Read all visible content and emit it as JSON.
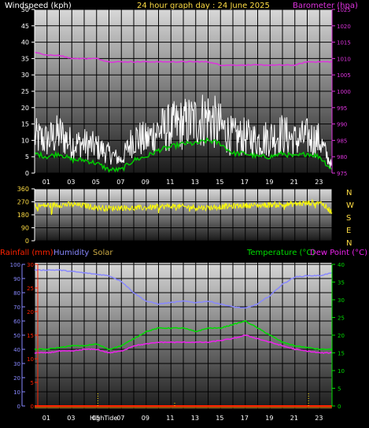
{
  "header": {
    "left_label": "Windspeed (kph)",
    "title": "24 hour graph day : 24 June 2025",
    "right_label": "Barometer (hpa)"
  },
  "colors": {
    "windspeed": "#ffffff",
    "gust_avg": "#00cc00",
    "barometer": "#dd33dd",
    "direction": "#ffff00",
    "rainfall": "#ff2200",
    "humidity": "#8888ff",
    "solar": "#ffcc33",
    "temperature": "#00dd00",
    "dewpoint": "#ee22ee",
    "axis_yellow": "#ffdd44",
    "grid": "#000000"
  },
  "x_ticks": [
    "01",
    "03",
    "05",
    "07",
    "09",
    "11",
    "13",
    "15",
    "17",
    "19",
    "21",
    "23"
  ],
  "panel1": {
    "left_ticks": [
      "0",
      "5",
      "10",
      "15",
      "20",
      "25",
      "30",
      "35",
      "40",
      "45",
      "50"
    ],
    "right_ticks": [
      "975",
      "980",
      "985",
      "990",
      "995",
      "1000",
      "1005",
      "1010",
      "1015",
      "1020",
      "1025"
    ]
  },
  "panel2": {
    "left_ticks": [
      "0",
      "90",
      "180",
      "270",
      "360"
    ],
    "right_labels": [
      "N",
      "W",
      "S",
      "E",
      "N"
    ]
  },
  "panel3": {
    "labels": {
      "rainfall": "Rainfall (mm)",
      "humidity": "Humidity",
      "solar": "Solar",
      "temperature": "Temperature (°C)",
      "dewpoint": "Dew Point (°C)"
    },
    "rain_ticks": [
      "0",
      "5",
      "10",
      "15",
      "20",
      "25",
      "30"
    ],
    "humidity_ticks": [
      "0",
      "10",
      "20",
      "30",
      "40",
      "50",
      "60",
      "70",
      "80",
      "90",
      "100"
    ],
    "temp_ticks": [
      "0",
      "5",
      "10",
      "15",
      "20",
      "25",
      "30",
      "35",
      "40"
    ],
    "tide_label": "HighTide"
  },
  "chart_data": [
    {
      "type": "line",
      "title": "24 hour graph day : 24 June 2025",
      "x": [
        0,
        1,
        2,
        3,
        4,
        5,
        6,
        7,
        8,
        9,
        10,
        11,
        12,
        13,
        14,
        15,
        16,
        17,
        18,
        19,
        20,
        21,
        22,
        23,
        24
      ],
      "xlim": [
        0,
        24
      ],
      "series": [
        {
          "name": "Windspeed (kph)",
          "axis": "left",
          "values": [
            11,
            10,
            12,
            9,
            9,
            8,
            6,
            4,
            11,
            10,
            13,
            14,
            15,
            16,
            17,
            14,
            11,
            11,
            10,
            11,
            12,
            10,
            11,
            10,
            2
          ]
        },
        {
          "name": "Barometer (hpa)",
          "axis": "right",
          "values": [
            1012,
            1011,
            1011,
            1010,
            1010,
            1010,
            1009,
            1009,
            1009,
            1009,
            1009,
            1009,
            1009,
            1009,
            1009,
            1008,
            1008,
            1008,
            1008,
            1008,
            1008,
            1008,
            1009,
            1009,
            1009
          ]
        },
        {
          "values": [
            6,
            5,
            6,
            4,
            4,
            3,
            1,
            1,
            4,
            5,
            7,
            8,
            9,
            9,
            10,
            9,
            6,
            6,
            5,
            5,
            6,
            5,
            6,
            5,
            1
          ]
        }
      ],
      "ylabel": "Windspeed (kph)",
      "ylim": [
        0,
        50
      ],
      "y2label": "Barometer (hpa)",
      "y2lim": [
        975,
        1025
      ]
    },
    {
      "type": "line",
      "x": [
        0,
        1,
        2,
        3,
        4,
        5,
        6,
        7,
        8,
        9,
        10,
        11,
        12,
        13,
        14,
        15,
        16,
        17,
        18,
        19,
        20,
        21,
        22,
        23,
        24
      ],
      "xlim": [
        0,
        24
      ],
      "series": [
        {
          "values": [
            240,
            245,
            250,
            250,
            245,
            230,
            225,
            230,
            225,
            230,
            235,
            240,
            235,
            230,
            230,
            235,
            240,
            245,
            245,
            250,
            250,
            255,
            260,
            270,
            200
          ]
        }
      ],
      "ylim": [
        0,
        360
      ],
      "y2_labels": [
        "N",
        "W",
        "S",
        "E",
        "N"
      ]
    },
    {
      "type": "line",
      "x": [
        0,
        1,
        2,
        3,
        4,
        5,
        6,
        7,
        8,
        9,
        10,
        11,
        12,
        13,
        14,
        15,
        16,
        17,
        18,
        19,
        20,
        21,
        22,
        23,
        24
      ],
      "xlim": [
        0,
        24
      ],
      "series": [
        {
          "name": "Humidity",
          "axis": "humidity",
          "values": [
            96,
            96,
            96,
            95,
            94,
            93,
            92,
            88,
            80,
            74,
            72,
            73,
            74,
            73,
            74,
            72,
            70,
            69,
            72,
            78,
            86,
            91,
            92,
            92,
            94
          ]
        },
        {
          "name": "Temperature (°C)",
          "axis": "temperature",
          "values": [
            16,
            16,
            16.5,
            17,
            17,
            17.5,
            16,
            17,
            19,
            21,
            22,
            22,
            22,
            21,
            22,
            22,
            23,
            24,
            22,
            20,
            18,
            17,
            16.5,
            16,
            16
          ]
        },
        {
          "name": "Dew Point (°C)",
          "axis": "temperature",
          "values": [
            15,
            15,
            15.5,
            15.5,
            16,
            16,
            15,
            15.5,
            17,
            17.5,
            18,
            18,
            18,
            18,
            18,
            18.5,
            19,
            20,
            19,
            18,
            17,
            16,
            15.5,
            15,
            15
          ]
        },
        {
          "name": "Rainfall (mm)",
          "axis": "rainfall",
          "values": [
            0,
            0,
            0,
            0,
            0,
            0,
            0,
            0,
            0,
            0,
            0,
            0,
            0,
            0,
            0,
            0,
            0,
            0,
            0,
            0,
            0,
            0,
            0,
            0,
            0
          ]
        },
        {
          "name": "Solar",
          "axis": "humidity",
          "values": [
            0,
            0,
            0,
            0,
            0,
            0,
            0,
            0,
            0,
            0,
            0,
            0,
            0,
            0,
            0,
            0,
            0,
            0,
            0,
            0,
            0,
            0,
            0,
            0,
            0
          ]
        }
      ],
      "rain_ylim": [
        0,
        30
      ],
      "humidity_ylim": [
        0,
        100
      ],
      "temp_ylim": [
        0,
        40
      ],
      "annotations": [
        "HighTide"
      ]
    }
  ]
}
